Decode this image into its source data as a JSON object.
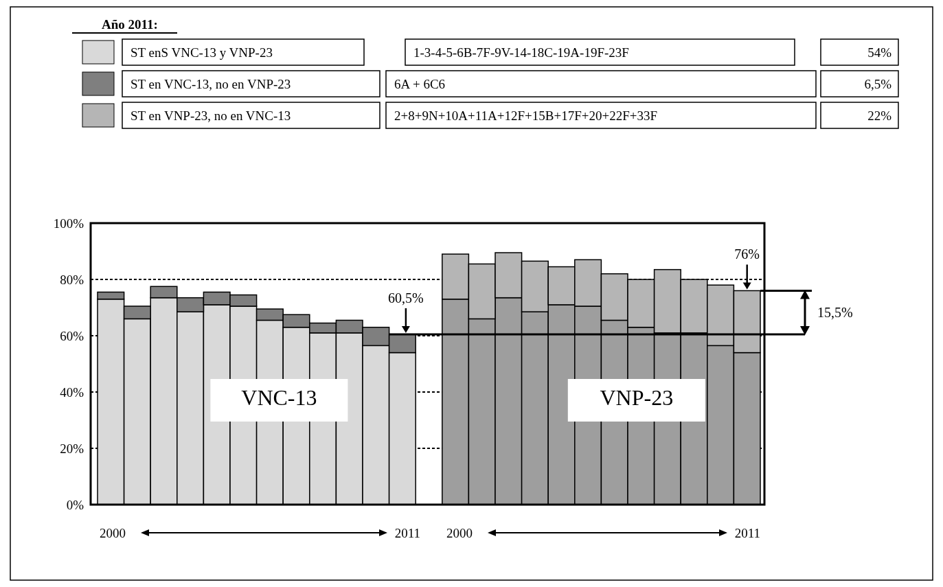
{
  "chart_data": {
    "type": "bar",
    "stacked": true,
    "title": "Año 2011:",
    "categories": [
      null,
      null,
      null,
      null,
      null,
      null,
      null,
      null,
      null,
      null,
      null,
      null,
      null,
      null,
      null,
      null,
      null,
      null,
      null,
      null,
      null,
      null,
      null,
      null,
      null
    ],
    "series": [
      {
        "name": "ST enS VNC-13 y VNP-23",
        "color": "#d9d9d9",
        "colors": [
          "#d9d9d9",
          "#d9d9d9",
          "#d9d9d9",
          "#d9d9d9",
          "#d9d9d9",
          "#d9d9d9",
          "#d9d9d9",
          "#d9d9d9",
          "#d9d9d9",
          "#d9d9d9",
          "#d9d9d9",
          "#d9d9d9",
          null,
          "#9e9e9e",
          "#9e9e9e",
          "#9e9e9e",
          "#9e9e9e",
          "#9e9e9e",
          "#9e9e9e",
          "#9e9e9e",
          "#9e9e9e",
          "#9e9e9e",
          "#9e9e9e",
          "#9e9e9e",
          "#9e9e9e"
        ],
        "values": [
          73,
          66,
          73.5,
          68.5,
          71,
          70.5,
          65.5,
          63,
          61,
          61,
          56.5,
          54,
          null,
          73,
          66,
          73.5,
          68.5,
          71,
          70.5,
          65.5,
          63,
          61,
          61,
          56.5,
          54
        ]
      },
      {
        "name": "ST en VNC-13, no en VNP-23",
        "color": "#7f7f7f",
        "values": [
          2.5,
          4.5,
          4,
          5,
          4.5,
          4,
          4,
          4.5,
          3.5,
          4.5,
          6.5,
          6.5,
          null,
          null,
          null,
          null,
          null,
          null,
          null,
          null,
          null,
          null,
          null,
          null,
          null
        ]
      },
      {
        "name": "ST en VNP-23, no en VNC-13",
        "color": "#b5b5b5",
        "values": [
          null,
          null,
          null,
          null,
          null,
          null,
          null,
          null,
          null,
          null,
          null,
          null,
          null,
          16,
          19.5,
          16,
          18,
          13.5,
          16.5,
          16.5,
          17,
          22.5,
          19,
          21.5,
          22
        ]
      }
    ],
    "ylim": [
      0,
      100
    ],
    "yticks": [
      {
        "value": 0,
        "label": "0%"
      },
      {
        "value": 20,
        "label": "20%"
      },
      {
        "value": 40,
        "label": "40%"
      },
      {
        "value": 60,
        "label": "60%"
      },
      {
        "value": 80,
        "label": "80%"
      },
      {
        "value": 100,
        "label": "100%"
      }
    ],
    "grid": "y",
    "legend": "top",
    "ref_lines": [
      {
        "axis": "y",
        "value": 60.5,
        "label": "60,5%"
      }
    ],
    "annotations": [
      "1-3-4-5-6B-7F-9V-14-18C-19A-19F-23F",
      "54%",
      "6A + 6C6",
      "6,5%",
      "2+8+9N+10A+11A+12F+15B+17F+20+22F+33F",
      "22%",
      "VNC-13",
      "VNP-23",
      "2000",
      "2011",
      "2000",
      "2011",
      "15,5%",
      {
        "text": "76%",
        "y": 76
      }
    ]
  }
}
